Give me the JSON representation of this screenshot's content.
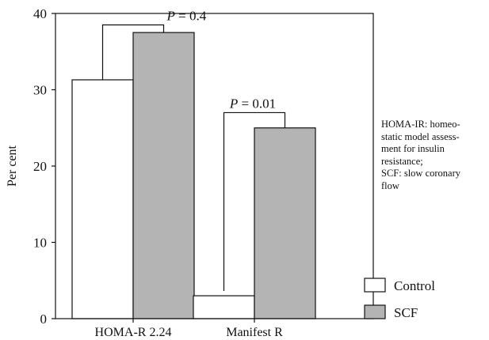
{
  "chart_data": {
    "type": "bar",
    "categories": [
      "HOMA-R 2.24",
      "Manifest R"
    ],
    "series": [
      {
        "name": "Control",
        "values": [
          31.3,
          3.0
        ],
        "color": "#ffffff"
      },
      {
        "name": "SCF",
        "values": [
          37.5,
          25.0
        ],
        "color": "#b4b4b4"
      }
    ],
    "ylabel": "Per cent",
    "xlabel": "",
    "ylim": [
      0,
      40
    ],
    "yticks": [
      0,
      10,
      20,
      30,
      40
    ],
    "grid": false,
    "legend": "bottom-right",
    "annotations": [
      {
        "category": "HOMA-R 2.24",
        "label_prefix": "P",
        "label_suffix": " = 0.4",
        "bracket_top": 38.5
      },
      {
        "category": "Manifest R",
        "label_prefix": "P",
        "label_suffix": " = 0.01",
        "bracket_top": 27.0
      }
    ]
  },
  "note_lines": [
    "HOMA-IR: homeo-",
    "static model assess-",
    "ment for insulin",
    "resistance;",
    "SCF: slow coronary",
    "flow"
  ]
}
